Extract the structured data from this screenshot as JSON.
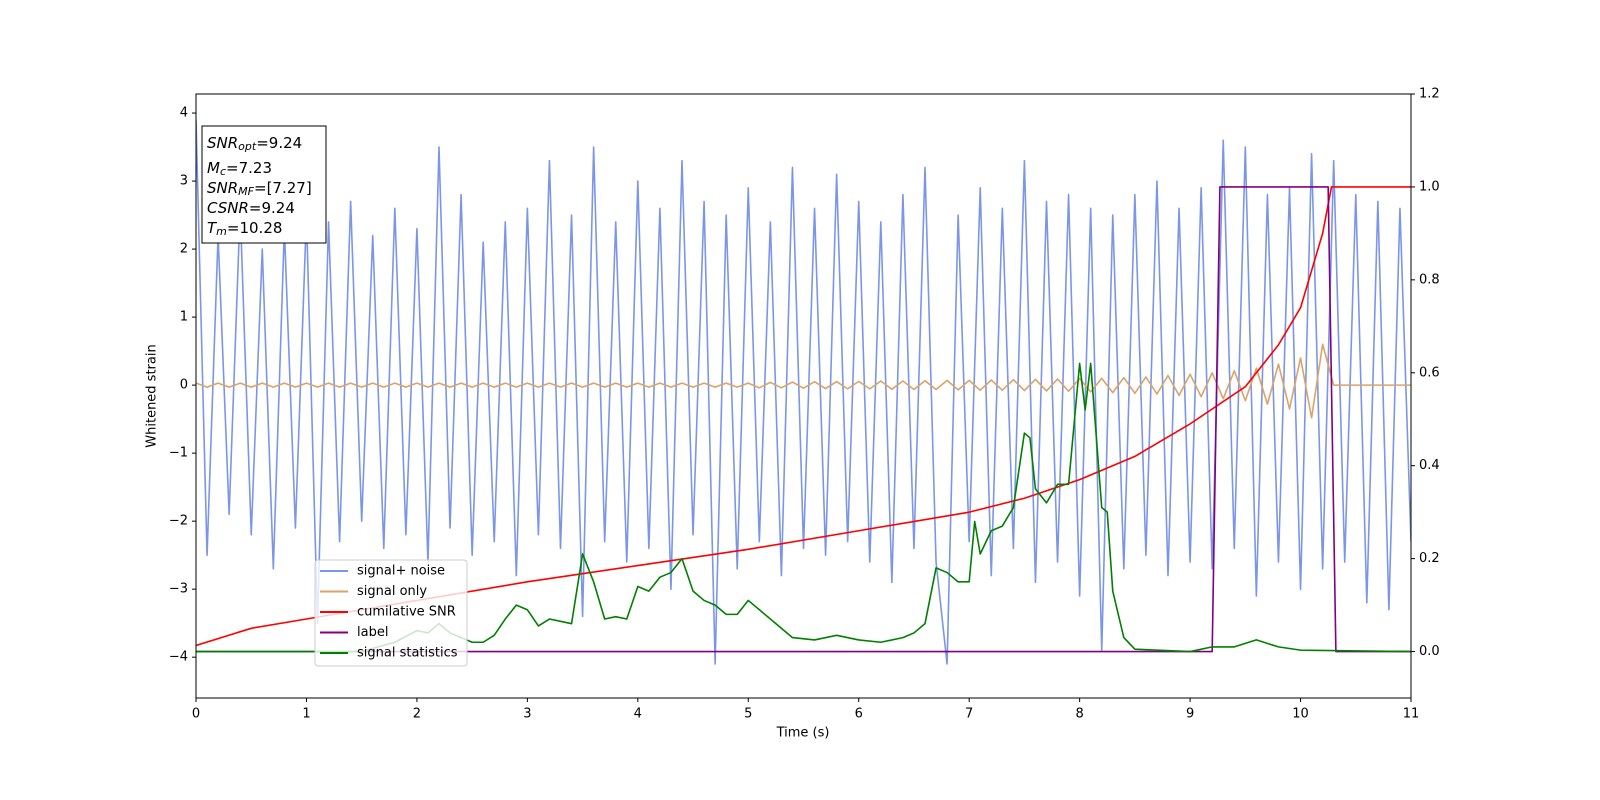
{
  "chart_data": {
    "type": "line",
    "xlabel": "Time (s)",
    "ylabel": "Whitened strain",
    "xlim": [
      0,
      11
    ],
    "ylim": [
      -4.6,
      4.28
    ],
    "y2lim": [
      -0.1,
      1.2
    ],
    "xticks": [
      0,
      1,
      2,
      3,
      4,
      5,
      6,
      7,
      8,
      9,
      10,
      11
    ],
    "yticks": [
      {
        "value": -4,
        "label": "−4"
      },
      {
        "value": -3,
        "label": "−3"
      },
      {
        "value": -2,
        "label": "−2"
      },
      {
        "value": -1,
        "label": "−1"
      },
      0,
      1,
      2,
      3,
      4
    ],
    "y2ticks": [
      {
        "value": 0,
        "label": "0.0"
      },
      0.2,
      0.4,
      0.6,
      0.8,
      {
        "value": 1,
        "label": "1.0"
      },
      1.2
    ],
    "legend": "lower left",
    "annotations": [
      {
        "base": "SNR",
        "sub": "opt",
        "text": "=9.24"
      },
      {
        "base": "M",
        "sub": "c",
        "text": "=7.23"
      },
      {
        "base": "SNR",
        "sub": "MF",
        "text": "=[7.27]"
      },
      {
        "base": "CSNR",
        "text": "=9.24"
      },
      {
        "base": "T",
        "sub": "m",
        "text": "=10.28"
      }
    ],
    "x": [
      0,
      0.1,
      0.2,
      0.3,
      0.4,
      0.5,
      0.6,
      0.7,
      0.8,
      0.9,
      1,
      1.1,
      1.2,
      1.3,
      1.4,
      1.5,
      1.6,
      1.7,
      1.8,
      1.9,
      2,
      2.1,
      2.2,
      2.3,
      2.4,
      2.5,
      2.6,
      2.7,
      2.8,
      2.9,
      3,
      3.1,
      3.2,
      3.3,
      3.4,
      3.5,
      3.6,
      3.7,
      3.8,
      3.9,
      4,
      4.1,
      4.2,
      4.3,
      4.4,
      4.5,
      4.6,
      4.7,
      4.8,
      4.9,
      5,
      5.1,
      5.2,
      5.3,
      5.4,
      5.5,
      5.6,
      5.7,
      5.8,
      5.9,
      6,
      6.1,
      6.2,
      6.3,
      6.4,
      6.5,
      6.6,
      6.7,
      6.8,
      6.9,
      7,
      7.1,
      7.2,
      7.3,
      7.4,
      7.5,
      7.6,
      7.7,
      7.8,
      7.9,
      8,
      8.1,
      8.2,
      8.3,
      8.4,
      8.5,
      8.6,
      8.7,
      8.8,
      8.9,
      9,
      9.1,
      9.2,
      9.3,
      9.4,
      9.5,
      9.6,
      9.7,
      9.8,
      9.9,
      10,
      10.1,
      10.2,
      10.3,
      10.4,
      10.5,
      10.6,
      10.7,
      10.8,
      10.9,
      11
    ],
    "series": [
      {
        "name": "signal+ noise",
        "color": "#7b96e8",
        "values": [
          3.9,
          -2.5,
          2.2,
          -1.9,
          2.6,
          -2.2,
          2.0,
          -2.7,
          2.3,
          -2.1,
          2.5,
          -3.5,
          2.4,
          -2.3,
          2.7,
          -2.0,
          2.2,
          -2.4,
          2.6,
          -2.2,
          2.3,
          -2.6,
          3.5,
          -2.1,
          2.8,
          -2.5,
          2.1,
          -2.3,
          2.4,
          -2.8,
          2.6,
          -2.2,
          3.3,
          -2.4,
          2.5,
          -3.4,
          3.5,
          -2.3,
          2.4,
          -2.6,
          3.0,
          -2.4,
          2.6,
          -3.0,
          3.3,
          -2.2,
          2.7,
          -4.1,
          2.5,
          -2.7,
          2.9,
          -2.3,
          2.4,
          -2.8,
          3.2,
          -2.4,
          2.6,
          -2.5,
          3.1,
          -2.3,
          2.7,
          -2.6,
          2.4,
          -2.9,
          2.8,
          -2.4,
          3.2,
          -2.6,
          -4.1,
          2.5,
          -2.3,
          2.9,
          -2.8,
          2.6,
          -2.4,
          3.3,
          -2.9,
          2.7,
          -2.6,
          2.8,
          -3.1,
          2.6,
          -3.9,
          2.5,
          -2.7,
          2.8,
          -2.5,
          3.0,
          -2.8,
          2.6,
          -2.6,
          2.9,
          -2.7,
          3.6,
          -2.4,
          3.5,
          -3.1,
          2.8,
          -2.6,
          2.9,
          -3.0,
          3.4,
          -2.7,
          3.3,
          -2.6,
          2.8,
          -3.2,
          2.7,
          -3.3,
          2.6,
          -2.3
        ]
      },
      {
        "name": "signal only",
        "color": "#d9a46a",
        "values": [
          0.03,
          -0.03,
          0.03,
          -0.03,
          0.03,
          -0.03,
          0.03,
          -0.03,
          0.03,
          -0.03,
          0.03,
          -0.03,
          0.03,
          -0.03,
          0.03,
          -0.03,
          0.03,
          -0.03,
          0.03,
          -0.03,
          0.03,
          -0.03,
          0.03,
          -0.03,
          0.03,
          -0.03,
          0.03,
          -0.03,
          0.03,
          -0.03,
          0.03,
          -0.03,
          0.03,
          -0.03,
          0.03,
          -0.03,
          0.03,
          -0.03,
          0.03,
          -0.03,
          0.03,
          -0.03,
          0.03,
          -0.03,
          0.03,
          -0.03,
          0.03,
          -0.03,
          0.03,
          -0.03,
          0.03,
          -0.04,
          0.04,
          -0.04,
          0.045,
          -0.045,
          0.05,
          -0.05,
          0.05,
          -0.055,
          0.055,
          -0.055,
          0.06,
          -0.06,
          0.06,
          -0.065,
          0.065,
          -0.065,
          0.07,
          -0.07,
          0.07,
          -0.075,
          0.075,
          -0.075,
          0.08,
          -0.08,
          0.085,
          -0.085,
          0.09,
          -0.09,
          0.095,
          -0.1,
          0.1,
          -0.11,
          0.11,
          -0.12,
          0.12,
          -0.13,
          0.14,
          -0.15,
          0.16,
          -0.17,
          0.18,
          -0.2,
          0.21,
          -0.23,
          0.25,
          -0.28,
          0.31,
          -0.35,
          0.4,
          -0.48,
          0.6,
          0,
          0,
          0,
          0,
          0,
          0,
          0,
          0
        ]
      },
      {
        "name": "cumilative SNR",
        "color": "#ff0000",
        "axis": "y2",
        "x": [
          0,
          0.5,
          1,
          2,
          3,
          4,
          5,
          6,
          7,
          7.5,
          8,
          8.5,
          9,
          9.5,
          9.8,
          10,
          10.2,
          10.28,
          11
        ],
        "values": [
          0.013,
          0.05,
          0.07,
          0.11,
          0.15,
          0.185,
          0.22,
          0.26,
          0.3,
          0.33,
          0.37,
          0.42,
          0.49,
          0.57,
          0.66,
          0.74,
          0.9,
          1.0,
          1.0
        ]
      },
      {
        "name": "label",
        "color": "#800080",
        "axis": "y2",
        "x": [
          0,
          9.2,
          9.27,
          10.25,
          10.32,
          11
        ],
        "values": [
          0,
          0,
          1,
          1,
          0,
          0
        ]
      },
      {
        "name": "signal statistics",
        "color": "#008000",
        "axis": "y2",
        "x": [
          0,
          1.5,
          1.8,
          2.0,
          2.1,
          2.2,
          2.3,
          2.5,
          2.6,
          2.7,
          2.8,
          2.9,
          3.0,
          3.1,
          3.2,
          3.3,
          3.4,
          3.5,
          3.6,
          3.7,
          3.8,
          3.9,
          4.0,
          4.1,
          4.2,
          4.3,
          4.4,
          4.5,
          4.6,
          4.7,
          4.8,
          4.9,
          5.0,
          5.2,
          5.4,
          5.6,
          5.8,
          6.0,
          6.2,
          6.4,
          6.5,
          6.6,
          6.7,
          6.8,
          6.9,
          7.0,
          7.05,
          7.1,
          7.2,
          7.3,
          7.4,
          7.5,
          7.55,
          7.6,
          7.7,
          7.8,
          7.9,
          8.0,
          8.05,
          8.1,
          8.2,
          8.25,
          8.3,
          8.4,
          8.5,
          9.0,
          9.2,
          9.4,
          9.6,
          9.8,
          10,
          11
        ],
        "values": [
          0,
          0,
          0.02,
          0.045,
          0.04,
          0.06,
          0.04,
          0.02,
          0.02,
          0.035,
          0.07,
          0.1,
          0.09,
          0.055,
          0.07,
          0.065,
          0.06,
          0.21,
          0.15,
          0.07,
          0.075,
          0.07,
          0.14,
          0.13,
          0.16,
          0.17,
          0.2,
          0.13,
          0.11,
          0.1,
          0.08,
          0.08,
          0.11,
          0.07,
          0.03,
          0.025,
          0.035,
          0.025,
          0.02,
          0.03,
          0.04,
          0.06,
          0.18,
          0.17,
          0.15,
          0.15,
          0.28,
          0.21,
          0.26,
          0.27,
          0.31,
          0.47,
          0.46,
          0.35,
          0.32,
          0.36,
          0.36,
          0.62,
          0.52,
          0.62,
          0.31,
          0.3,
          0.13,
          0.03,
          0.005,
          0,
          0.01,
          0.01,
          0.025,
          0.01,
          0.003,
          0
        ]
      }
    ]
  }
}
